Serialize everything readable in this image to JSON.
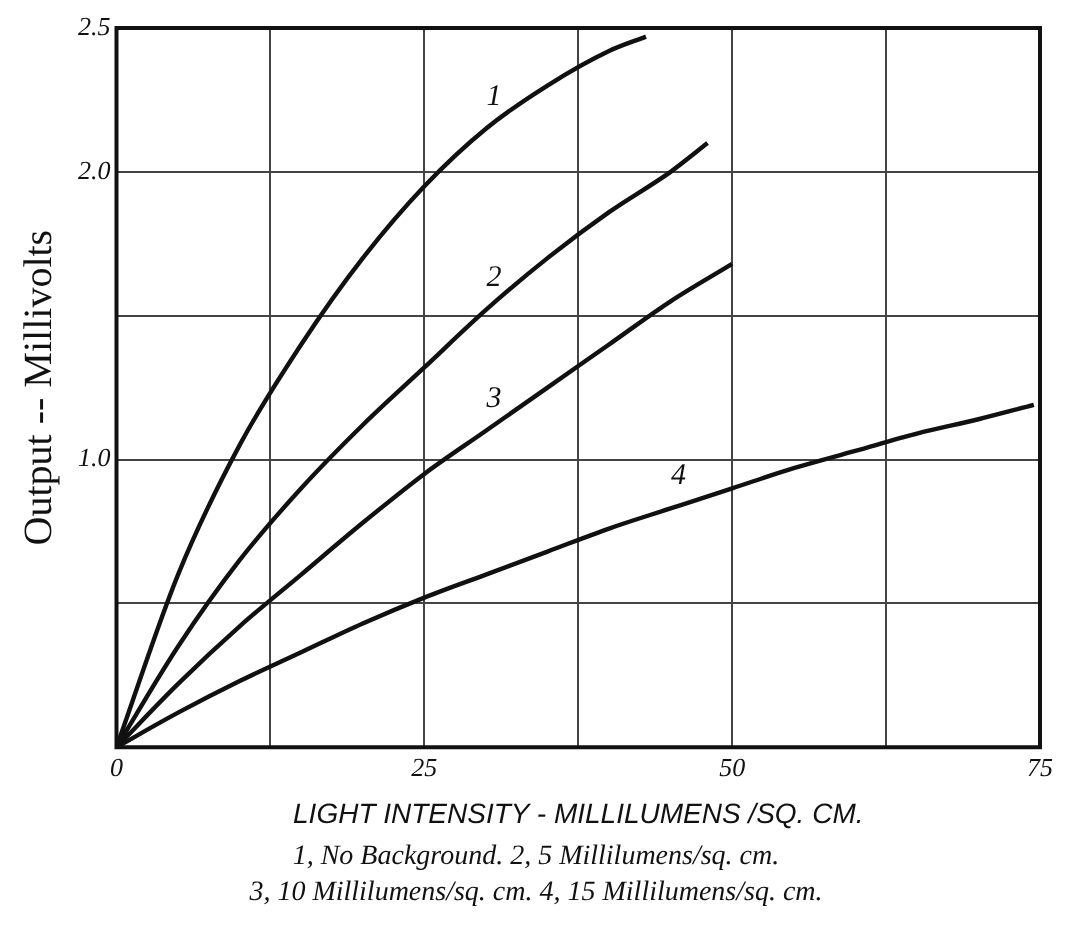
{
  "chart_data": {
    "type": "line",
    "xlabel": "LIGHT INTENSITY - MILLILUMENS /SQ. CM.",
    "ylabel": "Output -- Millivolts",
    "annotations": [
      "1, No Background.  2, 5 Millilumens/sq. cm.",
      "3, 10 Millilumens/sq. cm.  4, 15 Millilumens/sq. cm."
    ],
    "xlim": [
      0,
      75
    ],
    "xticks": [
      0,
      {
        "value": 12.5,
        "label": null
      },
      25,
      {
        "value": 37.5,
        "label": null
      },
      50,
      {
        "value": 62.5,
        "label": null
      },
      75
    ],
    "ylim": [
      0,
      2.5
    ],
    "yticks": [
      {
        "value": 0,
        "label": null
      },
      {
        "value": 0.5,
        "label": null
      },
      {
        "value": 1,
        "label": "1.0"
      },
      {
        "value": 1.5,
        "label": null
      },
      {
        "value": 2,
        "label": "2.0"
      },
      {
        "value": 2.5,
        "label": "2.5"
      }
    ],
    "grid": true,
    "legend": false,
    "marker": "none",
    "line_style": "solid",
    "series": [
      {
        "name": "1",
        "color": "#111111",
        "x": [
          0,
          5,
          10,
          15,
          20,
          25,
          30,
          35,
          40,
          43
        ],
        "values": [
          0,
          0.6,
          1.05,
          1.4,
          1.7,
          1.95,
          2.15,
          2.3,
          2.42,
          2.47
        ]
      },
      {
        "name": "2",
        "color": "#111111",
        "x": [
          0,
          5,
          10,
          15,
          20,
          25,
          30,
          35,
          40,
          45,
          48
        ],
        "values": [
          0,
          0.35,
          0.65,
          0.9,
          1.12,
          1.32,
          1.52,
          1.7,
          1.86,
          2.0,
          2.1
        ]
      },
      {
        "name": "3",
        "color": "#111111",
        "x": [
          0,
          5,
          10,
          15,
          20,
          25,
          30,
          35,
          40,
          45,
          50
        ],
        "values": [
          0,
          0.22,
          0.42,
          0.6,
          0.78,
          0.95,
          1.1,
          1.25,
          1.4,
          1.55,
          1.68
        ]
      },
      {
        "name": "4",
        "color": "#111111",
        "x": [
          0,
          5,
          10,
          15,
          20,
          25,
          30,
          35,
          40,
          45,
          50,
          55,
          60,
          65,
          70,
          74.5
        ],
        "values": [
          0,
          0.12,
          0.23,
          0.33,
          0.43,
          0.52,
          0.6,
          0.68,
          0.76,
          0.83,
          0.9,
          0.97,
          1.03,
          1.09,
          1.14,
          1.19
        ]
      }
    ]
  }
}
